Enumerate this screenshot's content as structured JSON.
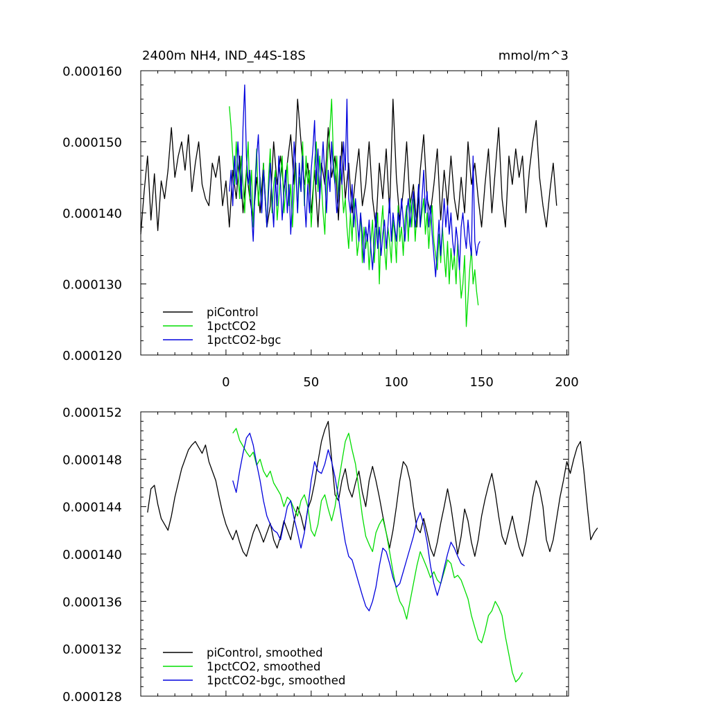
{
  "chart_data": [
    {
      "type": "line",
      "title": "2400m NH4, IND_44S-18S",
      "units": "mmol/m^3",
      "xlim": [
        -50,
        201
      ],
      "ylim": [
        0.00012,
        0.00016
      ],
      "xticks": [
        0,
        50,
        100,
        150,
        200
      ],
      "xtick_labels": [
        "0",
        "50",
        "100",
        "150",
        "200"
      ],
      "yticks": [
        0.00012,
        0.00013,
        0.00014,
        0.00015,
        0.00016
      ],
      "ytick_labels": [
        "0.000120",
        "0.000130",
        "0.000140",
        "0.000150",
        "0.000160"
      ],
      "legend_position": "bottom-left",
      "series": [
        {
          "name": "piControl",
          "color": "#000000",
          "x_start": -50,
          "x_step": 2,
          "values": [
            0.000137,
            0.000143,
            0.000148,
            0.000139,
            0.0001455,
            0.0001375,
            0.0001445,
            0.000142,
            0.000146,
            0.000152,
            0.000145,
            0.000148,
            0.00015,
            0.000146,
            0.000151,
            0.000143,
            0.000147,
            0.00015,
            0.000144,
            0.000142,
            0.000141,
            0.000147,
            0.000145,
            0.000148,
            0.000141,
            0.0001445,
            0.000138,
            0.000146,
            0.000142,
            0.000148,
            0.00014,
            0.000146,
            0.000142,
            0.000139,
            0.000145,
            0.00014,
            0.000147,
            0.000138,
            0.000141,
            0.00015,
            0.000144,
            0.000148,
            0.000143,
            0.000147,
            0.000151,
            0.000144,
            0.000156,
            0.00015,
            0.000144,
            0.000147,
            0.00014,
            0.000146,
            0.000138,
            0.000147,
            0.000144,
            0.000152,
            0.000145,
            0.000148,
            0.000139,
            0.00015,
            0.000142,
            0.000147,
            0.00014,
            0.000145,
            0.000149,
            0.000141,
            0.000144,
            0.00015,
            0.000142,
            0.000138,
            0.000147,
            0.000142,
            0.000149,
            0.00014,
            0.000156,
            0.000145,
            0.000139,
            0.000143,
            0.00015,
            0.000141,
            0.000144,
            0.000138,
            0.000146,
            0.000151,
            0.000142,
            0.00014,
            0.000144,
            0.000149,
            0.000139,
            0.000146,
            0.000141,
            0.000148,
            0.000142,
            0.000139,
            0.000145,
            0.00014,
            0.00015,
            0.000144,
            0.000147,
            0.000142,
            0.000138,
            0.000144,
            0.000149,
            0.00014,
            0.000146,
            0.000152,
            0.000142,
            0.000138,
            0.000148,
            0.000144,
            0.000149,
            0.000145,
            0.000148,
            0.00014,
            0.000146,
            0.00015,
            0.000153,
            0.000145,
            0.000141,
            0.000138,
            0.000143,
            0.000147,
            0.000141
          ]
        },
        {
          "name": "1pctCO2",
          "color": "#00dd00",
          "x_start": 2,
          "x_step": 1,
          "values": [
            0.000155,
            0.000152,
            0.000148,
            0.000144,
            0.00015,
            0.000146,
            0.000142,
            0.000148,
            0.000144,
            0.00014,
            0.000146,
            0.00015,
            0.000142,
            0.000146,
            0.000138,
            0.000144,
            0.000149,
            0.000141,
            0.000145,
            0.00014,
            0.000147,
            0.000142,
            0.000138,
            0.000145,
            0.000149,
            0.00014,
            0.000144,
            0.000146,
            0.000139,
            0.000142,
            0.000145,
            0.000148,
            0.00014,
            0.000143,
            0.000147,
            0.000141,
            0.000144,
            0.000138,
            0.000143,
            0.000147,
            0.00014,
            0.000145,
            0.000143,
            0.00015,
            0.000141,
            0.000148,
            0.000144,
            0.000146,
            0.000138,
            0.000142,
            0.000147,
            0.00015,
            0.000143,
            0.000148,
            0.000144,
            0.00014,
            0.000137,
            0.000145,
            0.000149,
            0.000152,
            0.000156,
            0.000148,
            0.000144,
            0.000148,
            0.000142,
            0.000146,
            0.000144,
            0.00014,
            0.000142,
            0.000138,
            0.000135,
            0.00014,
            0.000136,
            0.000142,
            0.000139,
            0.000134,
            0.000136,
            0.00014,
            0.000133,
            0.000138,
            0.000135,
            0.000137,
            0.000132,
            0.000136,
            0.000139,
            0.000133,
            0.000137,
            0.00014,
            0.00013,
            0.000138,
            0.000141,
            0.000135,
            0.000132,
            0.000138,
            0.000136,
            0.000133,
            0.000139,
            0.000137,
            0.000133,
            0.000141,
            0.000136,
            0.000138,
            0.000134,
            0.000139,
            0.000141,
            0.000136,
            0.000142,
            0.000138,
            0.000142,
            0.000136,
            0.00014,
            0.000144,
            0.000138,
            0.00014,
            0.000142,
            0.000137,
            0.00014,
            0.000135,
            0.000139,
            0.000141,
            0.000136,
            0.000134,
            0.000132,
            0.000137,
            0.000133,
            0.000138,
            0.000134,
            0.000131,
            0.000136,
            0.00013,
            0.000135,
            0.000132,
            0.000134,
            0.00013,
            0.000136,
            0.000132,
            0.000128,
            0.00013,
            0.000134,
            0.000124,
            0.000128,
            0.000132,
            0.000135,
            0.00013,
            0.000132,
            0.000129,
            0.000127
          ]
        },
        {
          "name": "1pctCO2-bgc",
          "color": "#0000dd",
          "x_start": 2,
          "x_step": 1,
          "values": [
            0.000143,
            0.000146,
            0.000141,
            0.000148,
            0.000144,
            0.00015,
            0.000146,
            0.000142,
            0.000152,
            0.000158,
            0.000148,
            0.000144,
            0.000146,
            0.00014,
            0.000136,
            0.000143,
            0.000148,
            0.000151,
            0.000144,
            0.00014,
            0.000146,
            0.000142,
            0.000138,
            0.000143,
            0.000147,
            0.000142,
            0.000138,
            0.000145,
            0.000141,
            0.000148,
            0.000144,
            0.000139,
            0.000143,
            0.000146,
            0.00014,
            0.000144,
            0.000137,
            0.000142,
            0.00015,
            0.000146,
            0.00014,
            0.000147,
            0.000143,
            0.000148,
            0.000142,
            0.000138,
            0.000144,
            0.00014,
            0.000146,
            0.000149,
            0.000153,
            0.000144,
            0.000149,
            0.000142,
            0.000146,
            0.00015,
            0.000145,
            0.00014,
            0.000146,
            0.000143,
            0.00015,
            0.000146,
            0.000144,
            0.00014,
            0.000142,
            0.000148,
            0.000144,
            0.00015,
            0.000146,
            0.000156,
            0.000142,
            0.00014,
            0.000144,
            0.000138,
            0.000142,
            0.000139,
            0.000136,
            0.00014,
            0.000137,
            0.000133,
            0.000138,
            0.000136,
            0.000139,
            0.000135,
            0.000132,
            0.000136,
            0.00014,
            0.000135,
            0.000138,
            0.000134,
            0.000137,
            0.000139,
            0.000135,
            0.000138,
            0.000142,
            0.000136,
            0.00014,
            0.000138,
            0.000136,
            0.00014,
            0.000138,
            0.000142,
            0.000139,
            0.000136,
            0.00014,
            0.000142,
            0.000138,
            0.000141,
            0.000143,
            0.000138,
            0.00014,
            0.000144,
            0.000138,
            0.000142,
            0.000146,
            0.00014,
            0.000143,
            0.000138,
            0.000141,
            0.000137,
            0.000134,
            0.000131,
            0.000135,
            0.000139,
            0.000134,
            0.000138,
            0.000142,
            0.000138,
            0.000141,
            0.000137,
            0.00014,
            0.000136,
            0.000134,
            0.000138,
            0.000136,
            0.000132,
            0.000138,
            0.00014,
            0.000137,
            0.000135,
            0.000139,
            0.000136,
            0.000134,
            0.000148,
            0.000136,
            0.000134,
            0.0001355,
            0.000136
          ]
        }
      ]
    },
    {
      "type": "line",
      "title": "",
      "xlim": [
        -50,
        201
      ],
      "ylim": [
        0.000128,
        0.000152
      ],
      "xticks": [
        0,
        50,
        100,
        150,
        200
      ],
      "yticks": [
        0.000128,
        0.000132,
        0.000136,
        0.00014,
        0.000144,
        0.000148,
        0.000152
      ],
      "ytick_labels": [
        "0.000128",
        "0.000132",
        "0.000136",
        "0.000140",
        "0.000144",
        "0.000148",
        "0.000152"
      ],
      "legend_position": "bottom-left",
      "series": [
        {
          "name": "piControl, smoothed",
          "color": "#000000",
          "x_start": -46,
          "x_step": 2,
          "values": [
            0.0001435,
            0.0001455,
            0.0001458,
            0.0001442,
            0.000143,
            0.0001425,
            0.000142,
            0.0001432,
            0.0001448,
            0.000146,
            0.0001472,
            0.000148,
            0.0001488,
            0.0001492,
            0.0001495,
            0.000149,
            0.0001485,
            0.0001492,
            0.0001478,
            0.000147,
            0.0001462,
            0.0001448,
            0.0001435,
            0.0001425,
            0.0001418,
            0.0001412,
            0.000142,
            0.000141,
            0.0001402,
            0.0001398,
            0.0001408,
            0.0001418,
            0.0001425,
            0.0001418,
            0.000141,
            0.0001418,
            0.0001426,
            0.0001412,
            0.0001405,
            0.0001415,
            0.0001428,
            0.000142,
            0.0001412,
            0.0001428,
            0.000144,
            0.0001432,
            0.000142,
            0.0001438,
            0.0001446,
            0.000146,
            0.0001478,
            0.0001495,
            0.0001505,
            0.0001512,
            0.000148,
            0.000145,
            0.0001445,
            0.0001462,
            0.0001472,
            0.0001455,
            0.0001448,
            0.000146,
            0.000147,
            0.0001452,
            0.000144,
            0.0001462,
            0.0001474,
            0.0001462,
            0.0001448,
            0.0001432,
            0.0001418,
            0.0001405,
            0.000142,
            0.000144,
            0.0001462,
            0.0001478,
            0.0001474,
            0.0001462,
            0.000144,
            0.0001422,
            0.0001418,
            0.000143,
            0.0001418,
            0.0001405,
            0.0001398,
            0.000141,
            0.0001426,
            0.000144,
            0.0001455,
            0.000144,
            0.000142,
            0.00014,
            0.0001415,
            0.0001438,
            0.0001428,
            0.000141,
            0.0001398,
            0.0001412,
            0.0001432,
            0.0001446,
            0.0001458,
            0.0001468,
            0.0001452,
            0.0001432,
            0.0001415,
            0.0001408,
            0.000142,
            0.0001432,
            0.0001418,
            0.0001406,
            0.0001398,
            0.000141,
            0.0001428,
            0.0001448,
            0.0001462,
            0.0001455,
            0.000144,
            0.0001412,
            0.0001402,
            0.0001412,
            0.000143,
            0.0001448,
            0.0001462,
            0.0001478,
            0.0001468,
            0.000148,
            0.000149,
            0.0001495,
            0.000147,
            0.000144,
            0.0001412,
            0.0001418,
            0.0001422
          ]
        },
        {
          "name": "1pctCO2, smoothed",
          "color": "#00dd00",
          "x_start": 4,
          "x_step": 2,
          "values": [
            0.0001502,
            0.0001506,
            0.0001496,
            0.0001491,
            0.0001486,
            0.0001482,
            0.0001486,
            0.0001475,
            0.000148,
            0.000147,
            0.0001465,
            0.000147,
            0.000146,
            0.0001455,
            0.000145,
            0.000144,
            0.0001448,
            0.0001445,
            0.0001438,
            0.0001432,
            0.0001445,
            0.000145,
            0.000144,
            0.000142,
            0.0001415,
            0.0001425,
            0.0001445,
            0.000145,
            0.0001438,
            0.0001428,
            0.000144,
            0.000146,
            0.0001478,
            0.0001495,
            0.0001502,
            0.0001488,
            0.0001476,
            0.0001455,
            0.0001432,
            0.0001415,
            0.0001408,
            0.0001402,
            0.0001418,
            0.0001425,
            0.000143,
            0.0001418,
            0.0001402,
            0.0001385,
            0.000137,
            0.000136,
            0.0001355,
            0.0001345,
            0.000136,
            0.0001375,
            0.000139,
            0.0001402,
            0.0001395,
            0.0001388,
            0.000138,
            0.0001385,
            0.0001378,
            0.0001375,
            0.0001385,
            0.0001395,
            0.0001392,
            0.000138,
            0.0001382,
            0.0001378,
            0.000137,
            0.0001362,
            0.0001348,
            0.0001338,
            0.0001328,
            0.0001325,
            0.0001335,
            0.0001348,
            0.0001352,
            0.000136,
            0.0001355,
            0.0001348,
            0.000133,
            0.0001315,
            0.00013,
            0.0001292,
            0.0001295,
            0.00013
          ]
        },
        {
          "name": "1pctCO2-bgc, smoothed",
          "color": "#0000dd",
          "x_start": 4,
          "x_step": 2,
          "values": [
            0.0001462,
            0.0001452,
            0.000147,
            0.0001485,
            0.0001498,
            0.0001502,
            0.0001492,
            0.0001476,
            0.0001462,
            0.0001445,
            0.0001432,
            0.0001425,
            0.000142,
            0.0001418,
            0.0001412,
            0.0001426,
            0.000144,
            0.0001445,
            0.000143,
            0.0001418,
            0.0001405,
            0.0001418,
            0.0001438,
            0.0001462,
            0.0001478,
            0.000147,
            0.0001468,
            0.0001476,
            0.0001488,
            0.0001478,
            0.0001465,
            0.0001448,
            0.0001428,
            0.000141,
            0.0001398,
            0.0001395,
            0.0001385,
            0.0001375,
            0.0001365,
            0.0001356,
            0.0001352,
            0.000136,
            0.0001372,
            0.000139,
            0.0001405,
            0.0001402,
            0.0001392,
            0.000138,
            0.0001372,
            0.0001375,
            0.0001385,
            0.0001395,
            0.0001405,
            0.0001415,
            0.0001428,
            0.0001435,
            0.0001425,
            0.000141,
            0.000139,
            0.0001375,
            0.0001365,
            0.0001375,
            0.0001388,
            0.00014,
            0.000141,
            0.0001405,
            0.0001398,
            0.0001392,
            0.000139
          ]
        }
      ]
    }
  ]
}
